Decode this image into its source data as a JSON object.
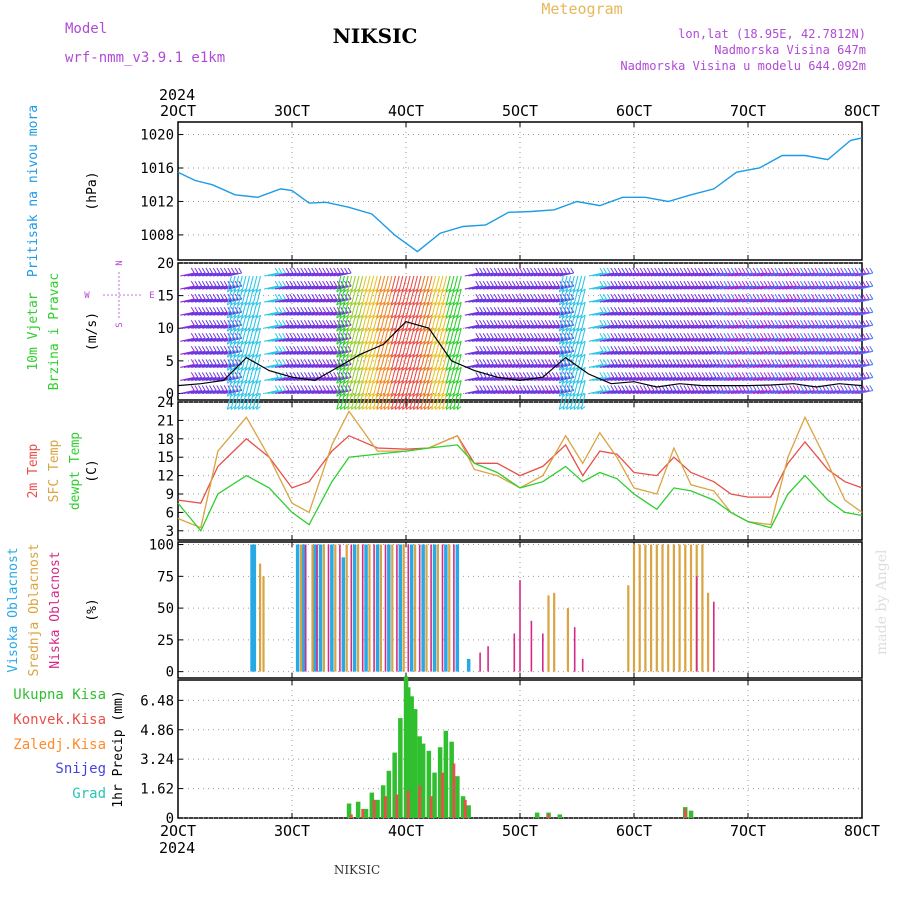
{
  "header": {
    "title": "NIKSIC",
    "subtitle": "Meteogram",
    "model_caption": "Model",
    "model_name": "wrf-nmm_v3.9.1  e1km",
    "coords": "lon,lat (18.95E, 42.7812N)",
    "elevation": "Nadmorska Visina 647m",
    "model_elevation": "Nadmorska Visina u modelu 644.092m",
    "year_top": "2024",
    "year_bottom": "2024",
    "footer": "NIKSIC",
    "credit": "made by Angel"
  },
  "colors": {
    "pressure": "#1e9be6",
    "temp2m": "#e8504a",
    "sfctemp": "#d9a441",
    "dewpt": "#2fcf2f",
    "high_cloud": "#27a9e6",
    "mid_cloud": "#d9a441",
    "low_cloud": "#d6298a",
    "total_rain": "#2fbf2f",
    "conv_rain": "#e8504a",
    "frz_rain": "#ff8c2a",
    "snow": "#4444dd",
    "graupel": "#26c6b4",
    "model_text": "#b14ad6",
    "grid": "#999999"
  },
  "chart_data": [
    {
      "type": "line",
      "panel": "pressure",
      "ylabel_left": "Pritisak na nivou mora",
      "ylabel": "(hPa)",
      "x_ticks": [
        "2OCT",
        "3OCT",
        "4OCT",
        "5OCT",
        "6OCT",
        "7OCT",
        "8OCT"
      ],
      "y_ticks": [
        "1008",
        "1012",
        "1016",
        "1020"
      ],
      "ylim": [
        1005,
        1021.5
      ],
      "xlim": [
        2,
        8
      ],
      "grid": true,
      "series": [
        {
          "x": [
            2.0,
            2.15,
            2.3,
            2.5,
            2.7,
            2.9,
            3.0,
            3.15,
            3.3,
            3.5,
            3.7,
            3.9,
            4.1,
            4.3,
            4.5,
            4.7,
            4.9,
            5.1,
            5.3,
            5.5,
            5.7,
            5.9,
            6.1,
            6.3,
            6.5,
            6.7,
            6.9,
            7.1,
            7.3,
            7.5,
            7.7,
            7.9,
            8.0
          ],
          "y": [
            1015.5,
            1014.5,
            1014.0,
            1012.8,
            1012.5,
            1013.5,
            1013.3,
            1011.8,
            1011.9,
            1011.3,
            1010.5,
            1008.0,
            1006.0,
            1008.2,
            1009.0,
            1009.2,
            1010.7,
            1010.8,
            1011.0,
            1012.0,
            1011.5,
            1012.5,
            1012.5,
            1012.0,
            1012.8,
            1013.5,
            1015.5,
            1016.0,
            1017.5,
            1017.5,
            1017.0,
            1019.3,
            1019.6
          ]
        }
      ]
    },
    {
      "type": "line",
      "panel": "wind",
      "ylabel_left": [
        "10m Vjetar",
        "Brzina i Pravac"
      ],
      "ylabel": "(m/s)",
      "compass": {
        "n": "N",
        "s": "S",
        "e": "E",
        "w": "W"
      },
      "y_ticks": [
        "0",
        "5",
        "10",
        "15",
        "20"
      ],
      "ylim": [
        -1,
        20
      ],
      "xlim": [
        2,
        8
      ],
      "grid": true,
      "series": [
        {
          "name": "speed",
          "x": [
            2.0,
            2.2,
            2.4,
            2.6,
            2.8,
            3.0,
            3.2,
            3.4,
            3.6,
            3.8,
            4.0,
            4.2,
            4.4,
            4.6,
            4.8,
            5.0,
            5.2,
            5.4,
            5.6,
            5.8,
            6.0,
            6.2,
            6.4,
            6.6,
            6.8,
            7.0,
            7.2,
            7.4,
            7.6,
            7.8,
            8.0
          ],
          "y": [
            1.2,
            1.5,
            2.0,
            5.5,
            3.5,
            2.5,
            2.0,
            4.0,
            6.0,
            7.5,
            11.0,
            10.0,
            5.0,
            3.5,
            2.5,
            2.0,
            2.5,
            5.5,
            3.0,
            1.5,
            1.8,
            1.0,
            1.5,
            1.2,
            1.2,
            1.2,
            1.3,
            1.5,
            1.0,
            1.5,
            1.2
          ]
        }
      ]
    },
    {
      "type": "line",
      "panel": "temperature",
      "ylabel_left": [
        "2m Temp",
        "SFC Temp",
        "dewpt Temp"
      ],
      "ylabel": "(C)",
      "y_ticks": [
        "3",
        "6",
        "9",
        "12",
        "15",
        "18",
        "21",
        "24"
      ],
      "ylim": [
        1.5,
        24
      ],
      "xlim": [
        2,
        8
      ],
      "grid": true,
      "x": [
        2.0,
        2.2,
        2.35,
        2.6,
        2.8,
        3.0,
        3.15,
        3.35,
        3.5,
        3.75,
        4.0,
        4.2,
        4.45,
        4.6,
        4.8,
        5.0,
        5.2,
        5.4,
        5.55,
        5.7,
        5.85,
        6.0,
        6.2,
        6.35,
        6.5,
        6.7,
        6.85,
        7.0,
        7.2,
        7.35,
        7.5,
        7.7,
        7.85,
        8.0
      ],
      "series": [
        {
          "name": "2m Temp",
          "values": [
            8.0,
            7.5,
            13.5,
            18.0,
            15.0,
            10.0,
            11.0,
            16.0,
            18.5,
            16.5,
            16.3,
            16.5,
            18.5,
            14.0,
            14.0,
            12.0,
            13.5,
            17.0,
            12.0,
            16.0,
            15.5,
            12.5,
            12.0,
            15.0,
            12.5,
            11.0,
            9.0,
            8.5,
            8.5,
            14.0,
            17.5,
            13.0,
            11.0,
            10.0
          ]
        },
        {
          "name": "SFC Temp",
          "values": [
            5.0,
            3.5,
            16.0,
            21.5,
            15.0,
            7.5,
            6.0,
            17.0,
            22.5,
            16.0,
            16.0,
            16.5,
            18.5,
            13.0,
            12.0,
            10.0,
            12.0,
            18.5,
            14.0,
            19.0,
            15.0,
            10.0,
            9.0,
            16.5,
            10.5,
            9.5,
            6.0,
            4.5,
            4.0,
            15.0,
            21.5,
            14.0,
            8.0,
            6.0
          ]
        },
        {
          "name": "dewpt Temp",
          "values": [
            7.5,
            3.0,
            9.0,
            12.0,
            10.0,
            6.0,
            4.0,
            11.0,
            15.0,
            15.5,
            16.0,
            16.5,
            17.0,
            14.0,
            12.5,
            10.0,
            11.0,
            13.5,
            11.0,
            12.5,
            11.5,
            9.0,
            6.5,
            10.0,
            9.5,
            8.0,
            6.0,
            4.5,
            3.5,
            9.0,
            12.0,
            8.0,
            6.0,
            5.5
          ]
        }
      ]
    },
    {
      "type": "bar",
      "panel": "cloud",
      "ylabel_left": [
        "Visoka Oblacnost",
        "Srednja Oblacnost",
        "Niska Oblacnost"
      ],
      "ylabel": "(%)",
      "y_ticks": [
        "0",
        "25",
        "50",
        "75",
        "100"
      ],
      "ylim": [
        -5,
        102
      ],
      "xlim": [
        2,
        8
      ],
      "grid": true,
      "series": [
        {
          "name": "Visoka Oblacnost",
          "x": [
            2.65,
            2.67,
            3.05,
            3.1,
            3.2,
            3.25,
            3.35,
            3.45,
            3.55,
            3.65,
            3.75,
            3.85,
            3.95,
            4.05,
            4.15,
            4.25,
            4.35,
            4.45,
            4.55
          ],
          "values": [
            100,
            100,
            100,
            100,
            100,
            100,
            100,
            90,
            100,
            100,
            100,
            100,
            100,
            100,
            100,
            100,
            100,
            100,
            10
          ]
        },
        {
          "name": "Srednja Oblacnost",
          "x": [
            2.72,
            2.75,
            3.08,
            3.18,
            3.28,
            3.38,
            3.48,
            3.58,
            3.68,
            3.78,
            3.88,
            3.98,
            4.08,
            4.18,
            4.28,
            4.38,
            5.25,
            5.3,
            5.42,
            5.95,
            6.0,
            6.05,
            6.1,
            6.15,
            6.2,
            6.25,
            6.3,
            6.35,
            6.4,
            6.45,
            6.5,
            6.55,
            6.6,
            6.65
          ],
          "values": [
            85,
            75,
            100,
            100,
            100,
            100,
            100,
            100,
            100,
            100,
            100,
            100,
            100,
            100,
            100,
            100,
            60,
            62,
            50,
            68,
            100,
            100,
            100,
            100,
            100,
            100,
            100,
            100,
            100,
            100,
            100,
            100,
            100,
            62
          ]
        },
        {
          "name": "Niska Oblacnost",
          "x": [
            3.12,
            3.22,
            3.32,
            3.42,
            3.52,
            3.62,
            3.72,
            3.82,
            3.92,
            4.02,
            4.12,
            4.22,
            4.32,
            4.42,
            4.65,
            4.72,
            4.95,
            5.0,
            5.1,
            5.2,
            5.48,
            5.55,
            6.55,
            6.7
          ],
          "values": [
            100,
            100,
            100,
            100,
            100,
            100,
            100,
            100,
            100,
            100,
            100,
            100,
            100,
            100,
            15,
            20,
            30,
            72,
            40,
            30,
            35,
            10,
            75,
            55
          ]
        }
      ]
    },
    {
      "type": "bar",
      "panel": "precip",
      "ylabel_left": [
        "Ukupna Kisa",
        "Konvek.Kisa",
        "Zaledj.Kisa",
        "Snijeg",
        "Grad"
      ],
      "ylabel": "1hr Precip (mm)",
      "y_ticks": [
        "0",
        "1.62",
        "3.24",
        "4.86",
        "6.48"
      ],
      "ylim": [
        0,
        7.6
      ],
      "xlim": [
        2,
        8
      ],
      "grid": true,
      "x_ticks": [
        "2OCT",
        "3OCT",
        "4OCT",
        "5OCT",
        "6OCT",
        "7OCT",
        "8OCT"
      ],
      "series": [
        {
          "name": "Ukupna Kisa",
          "x": [
            3.5,
            3.58,
            3.65,
            3.7,
            3.75,
            3.8,
            3.85,
            3.9,
            3.95,
            4.0,
            4.02,
            4.05,
            4.08,
            4.12,
            4.15,
            4.2,
            4.25,
            4.3,
            4.35,
            4.4,
            4.45,
            4.5,
            4.55,
            5.15,
            5.25,
            5.35,
            6.45,
            6.5
          ],
          "values": [
            0.8,
            0.9,
            0.5,
            1.4,
            1.0,
            1.8,
            2.6,
            3.6,
            5.5,
            7.8,
            7.2,
            6.7,
            6.0,
            4.5,
            4.1,
            3.7,
            2.5,
            3.9,
            4.8,
            4.2,
            2.3,
            1.2,
            0.7,
            0.3,
            0.3,
            0.2,
            0.6,
            0.4
          ]
        },
        {
          "name": "Konvek.Kisa",
          "x": [
            3.52,
            3.62,
            3.72,
            3.82,
            3.92,
            4.02,
            4.12,
            4.22,
            4.32,
            4.42,
            4.52,
            5.25,
            6.45
          ],
          "values": [
            0.2,
            0.5,
            1.0,
            1.2,
            1.3,
            1.5,
            1.8,
            1.2,
            2.5,
            3.0,
            1.0,
            0.2,
            0.5
          ]
        }
      ]
    }
  ]
}
